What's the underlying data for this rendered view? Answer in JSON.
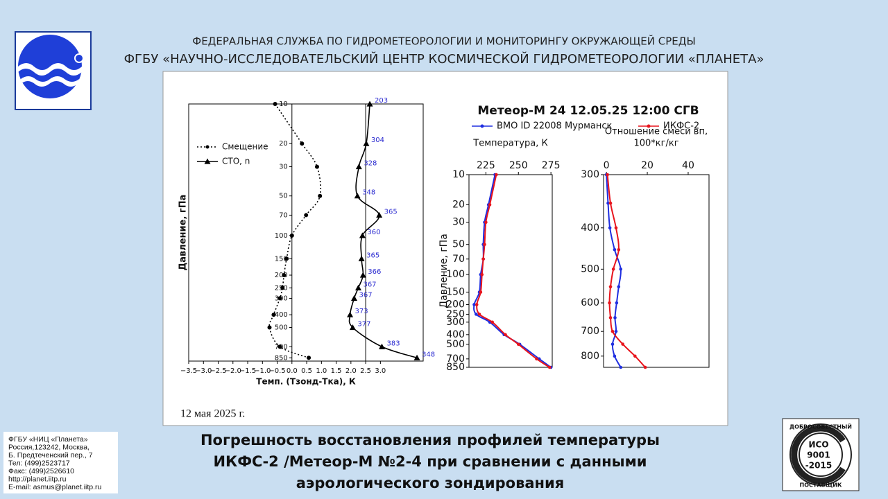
{
  "header": {
    "line1": "ФЕДЕРАЛЬНАЯ СЛУЖБА ПО ГИДРОМЕТЕОРОЛОГИИ И МОНИТОРИНГУ ОКРУЖАЮЩЕЙ СРЕДЫ",
    "line2": "ФГБУ «НАУЧНО-ИССЛЕДОВАТЕЛЬСКИЙ ЦЕНТР КОСМИЧЕСКОЙ ГИДРОМЕТЕОРОЛОГИИ «ПЛАНЕТА»"
  },
  "image_caption": "12 мая 2025 г.",
  "chart_data": [
    {
      "type": "line",
      "xlabel": "Темп. (Тзонд-Тка), К",
      "ylabel": "Давление, гПа",
      "ylog": true,
      "xlim": [
        -3.5,
        4.45
      ],
      "ylim": [
        10,
        900
      ],
      "xticks": [
        {
          "value": -3.5,
          "label": "−3.5"
        },
        {
          "value": -3.0,
          "label": "−3.0"
        },
        {
          "value": -2.5,
          "label": "−2.5"
        },
        {
          "value": -2.0,
          "label": "−2.0"
        },
        {
          "value": -1.5,
          "label": "−1.5"
        },
        {
          "value": -1.0,
          "label": "−1.0"
        },
        {
          "value": -0.5,
          "label": "−0.5"
        },
        {
          "value": 0,
          "label": "0.0"
        },
        0.5,
        {
          "value": 1,
          "label": "1.0"
        },
        1.5,
        {
          "value": 2,
          "label": "2.0"
        },
        2.5,
        {
          "value": 3,
          "label": "3.0"
        }
      ],
      "yticks": [
        10,
        20,
        30,
        50,
        70,
        100,
        150,
        200,
        250,
        300,
        400,
        500,
        700,
        850
      ],
      "vlines": [
        0,
        2.5
      ],
      "legend": "upper left",
      "y": [
        10,
        20,
        30,
        50,
        70,
        100,
        150,
        200,
        250,
        300,
        400,
        500,
        700,
        850
      ],
      "series": [
        {
          "name": "Смещение",
          "color": "#000000",
          "linestyle": "dotted",
          "marker": "circle",
          "values": [
            -0.57,
            0.34,
            0.85,
            0.95,
            0.48,
            0,
            -0.18,
            -0.27,
            -0.32,
            -0.41,
            -0.62,
            -0.76,
            -0.41,
            0.57
          ]
        },
        {
          "name": "СТО, n",
          "color": "#000000",
          "linestyle": "solid",
          "marker": "triangle",
          "values": [
            2.64,
            2.52,
            2.27,
            2.22,
            2.96,
            2.39,
            2.36,
            2.41,
            2.25,
            2.11,
            1.97,
            2.06,
            3.05,
            4.24
          ],
          "point_labels": [
            203,
            304,
            328,
            348,
            365,
            360,
            365,
            366,
            367,
            367,
            373,
            377,
            383,
            348
          ]
        }
      ]
    },
    {
      "type": "line",
      "title": "Метеор-М 24 12.05.25 12:00 СГВ",
      "panel_title": [
        "Температура, К"
      ],
      "ylabel": "Давление, гПа",
      "ylog": true,
      "xlim": [
        212,
        276
      ],
      "ylim": [
        10,
        850
      ],
      "xticks": [
        225,
        250,
        275
      ],
      "yticks": [
        10,
        20,
        30,
        50,
        70,
        100,
        150,
        200,
        250,
        300,
        400,
        500,
        700,
        850
      ],
      "legend": "upper center",
      "y": [
        10,
        20,
        30,
        50,
        70,
        100,
        150,
        200,
        250,
        300,
        400,
        500,
        700,
        850
      ],
      "series": [
        {
          "name": "ВМО ID 22008 Мурманск",
          "color": "#1f2ee0",
          "linestyle": "solid",
          "marker": "circle",
          "values": [
            232,
            227,
            224,
            223,
            223,
            221,
            220,
            216,
            217.5,
            228,
            239,
            251,
            266,
            275
          ]
        },
        {
          "name": "ИКФС-2",
          "color": "#e8141c",
          "linestyle": "solid",
          "marker": "circle",
          "values": [
            233,
            228,
            225,
            224,
            223,
            222,
            221,
            218,
            220,
            230,
            240,
            250,
            264,
            274
          ]
        }
      ]
    },
    {
      "type": "line",
      "panel_title": [
        "Отношение смеси вп,",
        "100*кг/кг"
      ],
      "ylog": true,
      "xlim": [
        -1.4,
        50.2
      ],
      "ylim": [
        300,
        850
      ],
      "xticks": [
        0,
        20,
        40
      ],
      "yticks": [
        300,
        400,
        500,
        600,
        700,
        800
      ],
      "y": [
        300,
        350,
        400,
        450,
        500,
        550,
        600,
        650,
        700,
        750,
        800,
        850
      ],
      "series": [
        {
          "color": "#1f2ee0",
          "linestyle": "solid",
          "marker": "circle",
          "values": [
            0,
            0.8,
            1.7,
            4,
            7,
            6,
            5,
            4.2,
            4.7,
            3,
            4,
            7
          ]
        },
        {
          "color": "#e8141c",
          "linestyle": "solid",
          "marker": "circle",
          "values": [
            0.5,
            2,
            4.7,
            6,
            3.4,
            2,
            1.5,
            2,
            3,
            8,
            14,
            19
          ]
        }
      ]
    }
  ],
  "footer": {
    "title": [
      "Погрешность восстановления профилей температуры",
      "ИКФС-2 /Метеор-М №2-4 при сравнении с данными",
      "аэрологического зондирования"
    ],
    "contacts": [
      "ФГБУ «НИЦ «Планета»",
      "Россия,123242, Москва,",
      "Б. Предтеченский пер., 7",
      "Тел:   (499)2523717",
      "Факс: (499)2526610",
      "http://planet.iitp.ru",
      "E-mail: asmus@planet.iitp.ru"
    ],
    "badge": {
      "top": "ДОБРОСОВЕСТНЫЙ",
      "lines": [
        "ИСО",
        "9001",
        "-2015"
      ],
      "bottom": "ПОСТАВЩИК"
    }
  }
}
